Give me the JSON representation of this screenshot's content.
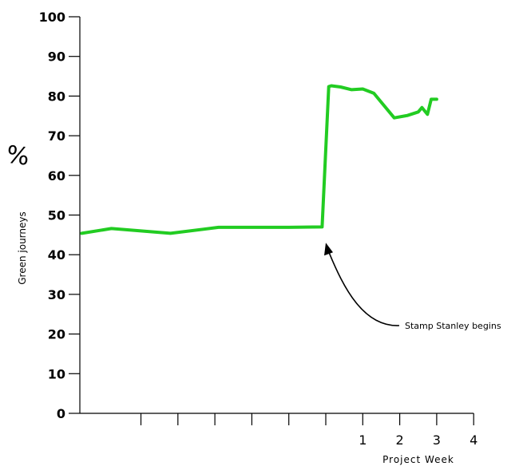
{
  "chart_data": {
    "type": "line",
    "ylabel": "Green journeys",
    "ylabel_symbol": "%",
    "xlabel": "Project Week",
    "ylim": [
      0,
      100
    ],
    "yticks": [
      0,
      10,
      20,
      30,
      40,
      50,
      60,
      70,
      80,
      90,
      100
    ],
    "yticklabels": [
      "0",
      "10",
      "20",
      "30",
      "40",
      "50",
      "60",
      "70",
      "80",
      "90",
      "100"
    ],
    "xlim": [
      -6,
      4
    ],
    "xticks": [
      -5,
      -4,
      -3,
      -2,
      -1,
      0,
      1,
      2,
      3,
      4
    ],
    "xticklabels": [
      "",
      "",
      "",
      "",
      "",
      "",
      "1",
      "2",
      "3",
      "4"
    ],
    "grid": false,
    "line_color": "#22cc22",
    "series": [
      {
        "x": [
          -6.6,
          -5.8,
          -4.2,
          -2.9,
          -1.0,
          -0.1,
          0.08,
          0.15,
          0.4,
          0.7,
          1.0,
          1.3,
          1.85,
          2.2,
          2.5,
          2.6,
          2.75,
          2.85,
          3.0
        ],
        "y": [
          45.4,
          46.6,
          45.4,
          46.9,
          46.9,
          47.0,
          82.4,
          82.6,
          82.3,
          81.6,
          81.8,
          80.7,
          74.5,
          75.1,
          76.0,
          77.1,
          75.4,
          79.2,
          79.2
        ]
      }
    ],
    "annotations": [
      {
        "text": "Stamp Stanley begins",
        "x": 0.0,
        "y": 43.0
      }
    ]
  }
}
